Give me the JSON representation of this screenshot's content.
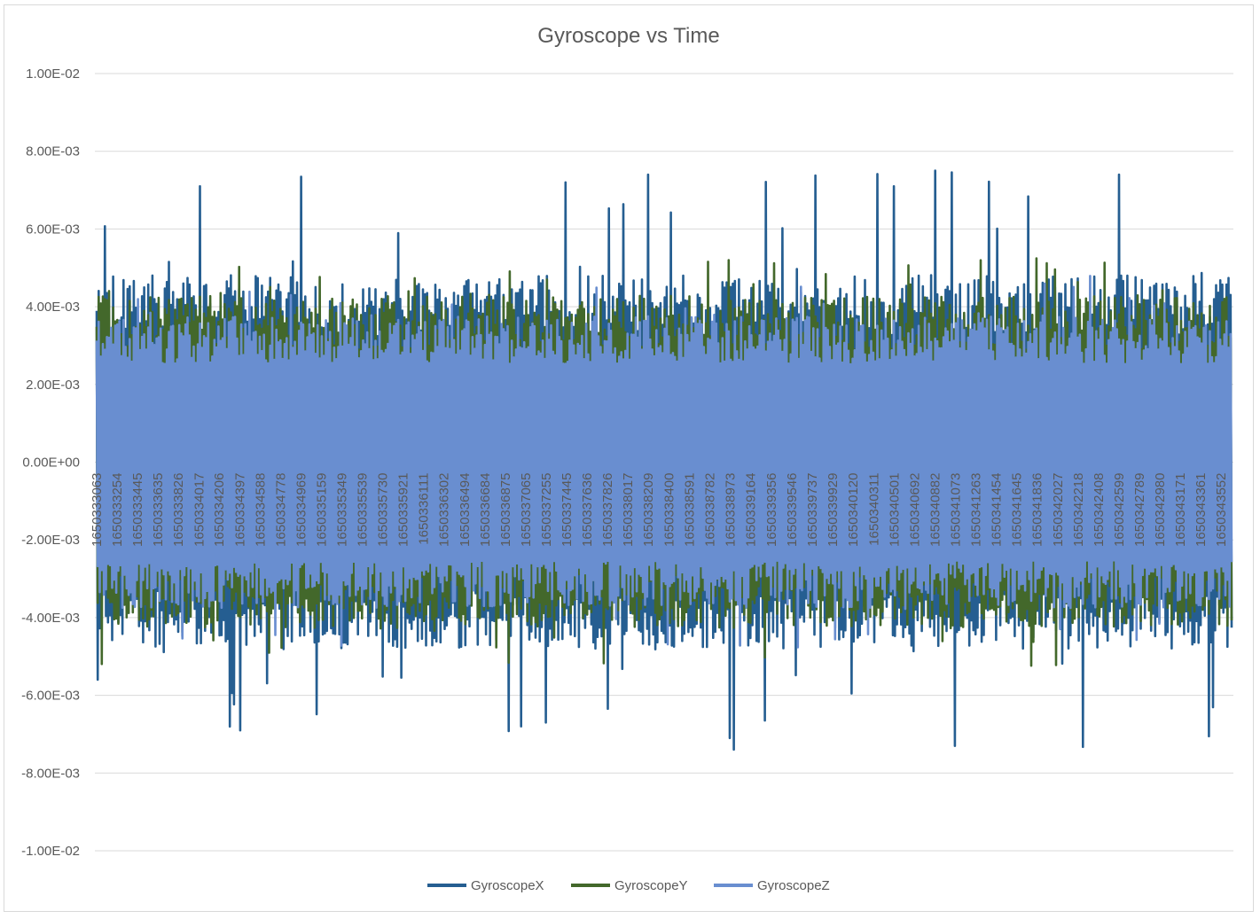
{
  "chart_data": {
    "type": "line",
    "title": "Gyroscope vs Time",
    "xlabel": "",
    "ylabel": "",
    "ylim": [
      -0.01,
      0.01
    ],
    "yticks": [
      "1.00E-02",
      "8.00E-03",
      "6.00E-03",
      "4.00E-03",
      "2.00E-03",
      "0.00E+00",
      "-2.00E-03",
      "-4.00E-03",
      "-6.00E-03",
      "-8.00E-03",
      "-1.00E-02"
    ],
    "ytick_values": [
      0.01,
      0.008,
      0.006,
      0.004,
      0.002,
      0.0,
      -0.002,
      -0.004,
      -0.006,
      -0.008,
      -0.01
    ],
    "x_tick_labels": [
      "1650333063",
      "1650333254",
      "1650333445",
      "1650333635",
      "1650333826",
      "1650334017",
      "1650334206",
      "1650334397",
      "1650334588",
      "1650334778",
      "1650334969",
      "1650335159",
      "1650335349",
      "1650335539",
      "1650335730",
      "1650335921",
      "1650336111",
      "1650336302",
      "1650336494",
      "1650336684",
      "1650336875",
      "1650337065",
      "1650337255",
      "1650337445",
      "1650337636",
      "1650337826",
      "1650338017",
      "1650338209",
      "1650338400",
      "1650338591",
      "1650338782",
      "1650338973",
      "1650339164",
      "1650339356",
      "1650339546",
      "1650339737",
      "1650339929",
      "1650340120",
      "1650340311",
      "1650340501",
      "1650340692",
      "1650340882",
      "1650341073",
      "1650341263",
      "1650341454",
      "1650341645",
      "1650341836",
      "1650342027",
      "1650342218",
      "1650342408",
      "1650342599",
      "1650342789",
      "1650342980",
      "1650343171",
      "1650343361",
      "1650343552"
    ],
    "x_range": [
      1650333063,
      1650343650
    ],
    "grid": "horizontal",
    "legend_position": "bottom",
    "series": [
      {
        "name": "GyroscopeX",
        "color": "#255e91",
        "amplitude_typical": 0.0045,
        "amplitude_peak": 0.0075
      },
      {
        "name": "GyroscopeY",
        "color": "#43682b",
        "amplitude_typical": 0.004,
        "amplitude_peak": 0.0053
      },
      {
        "name": "GyroscopeZ",
        "color": "#698ed0",
        "amplitude_typical": 0.0035,
        "amplitude_peak": 0.0048
      }
    ],
    "notable_peaks": [
      {
        "series": "GyroscopeX",
        "x": 1650338209,
        "y": 0.0074
      },
      {
        "series": "GyroscopeX",
        "x": 1650340882,
        "y": 0.0075
      },
      {
        "series": "GyroscopeX",
        "x": 1650342599,
        "y": 0.0074
      },
      {
        "series": "GyroscopeX",
        "x": 1650337445,
        "y": 0.0072
      },
      {
        "series": "GyroscopeX",
        "x": 1650334017,
        "y": 0.0071
      },
      {
        "series": "GyroscopeX",
        "x": 1650340501,
        "y": 0.0071
      },
      {
        "series": "GyroscopeX",
        "x": 1650341073,
        "y": -0.0073
      },
      {
        "series": "GyroscopeX",
        "x": 1650338973,
        "y": -0.0071
      },
      {
        "series": "GyroscopeX",
        "x": 1650334397,
        "y": -0.0069
      },
      {
        "series": "GyroscopeX",
        "x": 1650337255,
        "y": -0.0067
      }
    ]
  }
}
